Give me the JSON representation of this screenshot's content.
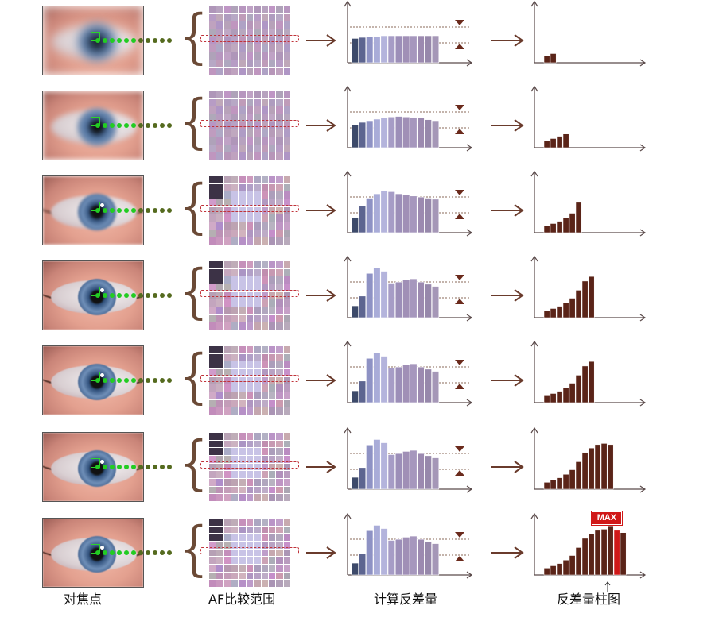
{
  "labels": {
    "focus_point": "对焦点",
    "af_range": "AF比较范围",
    "calc_contrast": "计算反差量",
    "contrast_histogram": "反差量柱图"
  },
  "max_badge": "MAX",
  "colors": {
    "arrow": "#6a3b2c",
    "axis": "#5a4a4a",
    "hist_bar": "#5a2418",
    "max_bar": "#d01818",
    "dot_green": "#22cc22",
    "dot_olive": "#556b1f",
    "threshold_marker": "#6a2a1c"
  },
  "rows": [
    {
      "focus_level": 1,
      "contrast_bars": [
        0.45,
        0.47,
        0.48,
        0.49,
        0.5,
        0.5,
        0.5,
        0.5,
        0.5,
        0.5,
        0.5,
        0.5
      ],
      "histogram": [
        0.12,
        0.16
      ]
    },
    {
      "focus_level": 2,
      "contrast_bars": [
        0.42,
        0.47,
        0.5,
        0.53,
        0.55,
        0.57,
        0.58,
        0.57,
        0.56,
        0.55,
        0.52,
        0.5
      ],
      "histogram": [
        0.12,
        0.16,
        0.2,
        0.24
      ]
    },
    {
      "focus_level": 3,
      "contrast_bars": [
        0.28,
        0.5,
        0.64,
        0.72,
        0.78,
        0.76,
        0.72,
        0.7,
        0.68,
        0.66,
        0.64,
        0.62
      ],
      "histogram": [
        0.12,
        0.16,
        0.2,
        0.26,
        0.34,
        0.53
      ]
    },
    {
      "focus_level": 4,
      "contrast_bars": [
        0.22,
        0.4,
        0.82,
        0.92,
        0.86,
        0.64,
        0.66,
        0.7,
        0.72,
        0.66,
        0.62,
        0.58
      ],
      "histogram": [
        0.12,
        0.16,
        0.2,
        0.26,
        0.34,
        0.48,
        0.64,
        0.72
      ]
    },
    {
      "focus_level": 5,
      "contrast_bars": [
        0.22,
        0.4,
        0.82,
        0.92,
        0.86,
        0.64,
        0.66,
        0.7,
        0.72,
        0.66,
        0.62,
        0.58
      ],
      "histogram": [
        0.12,
        0.16,
        0.2,
        0.26,
        0.34,
        0.48,
        0.64,
        0.72
      ]
    },
    {
      "focus_level": 5,
      "contrast_bars": [
        0.22,
        0.4,
        0.82,
        0.92,
        0.86,
        0.64,
        0.66,
        0.7,
        0.72,
        0.66,
        0.62,
        0.58
      ],
      "histogram": [
        0.12,
        0.16,
        0.2,
        0.26,
        0.34,
        0.48,
        0.64,
        0.72,
        0.78,
        0.8,
        0.78
      ]
    },
    {
      "focus_level": 5,
      "contrast_bars": [
        0.22,
        0.4,
        0.82,
        0.92,
        0.86,
        0.64,
        0.66,
        0.7,
        0.72,
        0.66,
        0.62,
        0.58
      ],
      "histogram": [
        0.12,
        0.16,
        0.2,
        0.26,
        0.34,
        0.48,
        0.64,
        0.72,
        0.78,
        0.8,
        0.86,
        0.78,
        0.74
      ],
      "max_index": 11
    }
  ]
}
